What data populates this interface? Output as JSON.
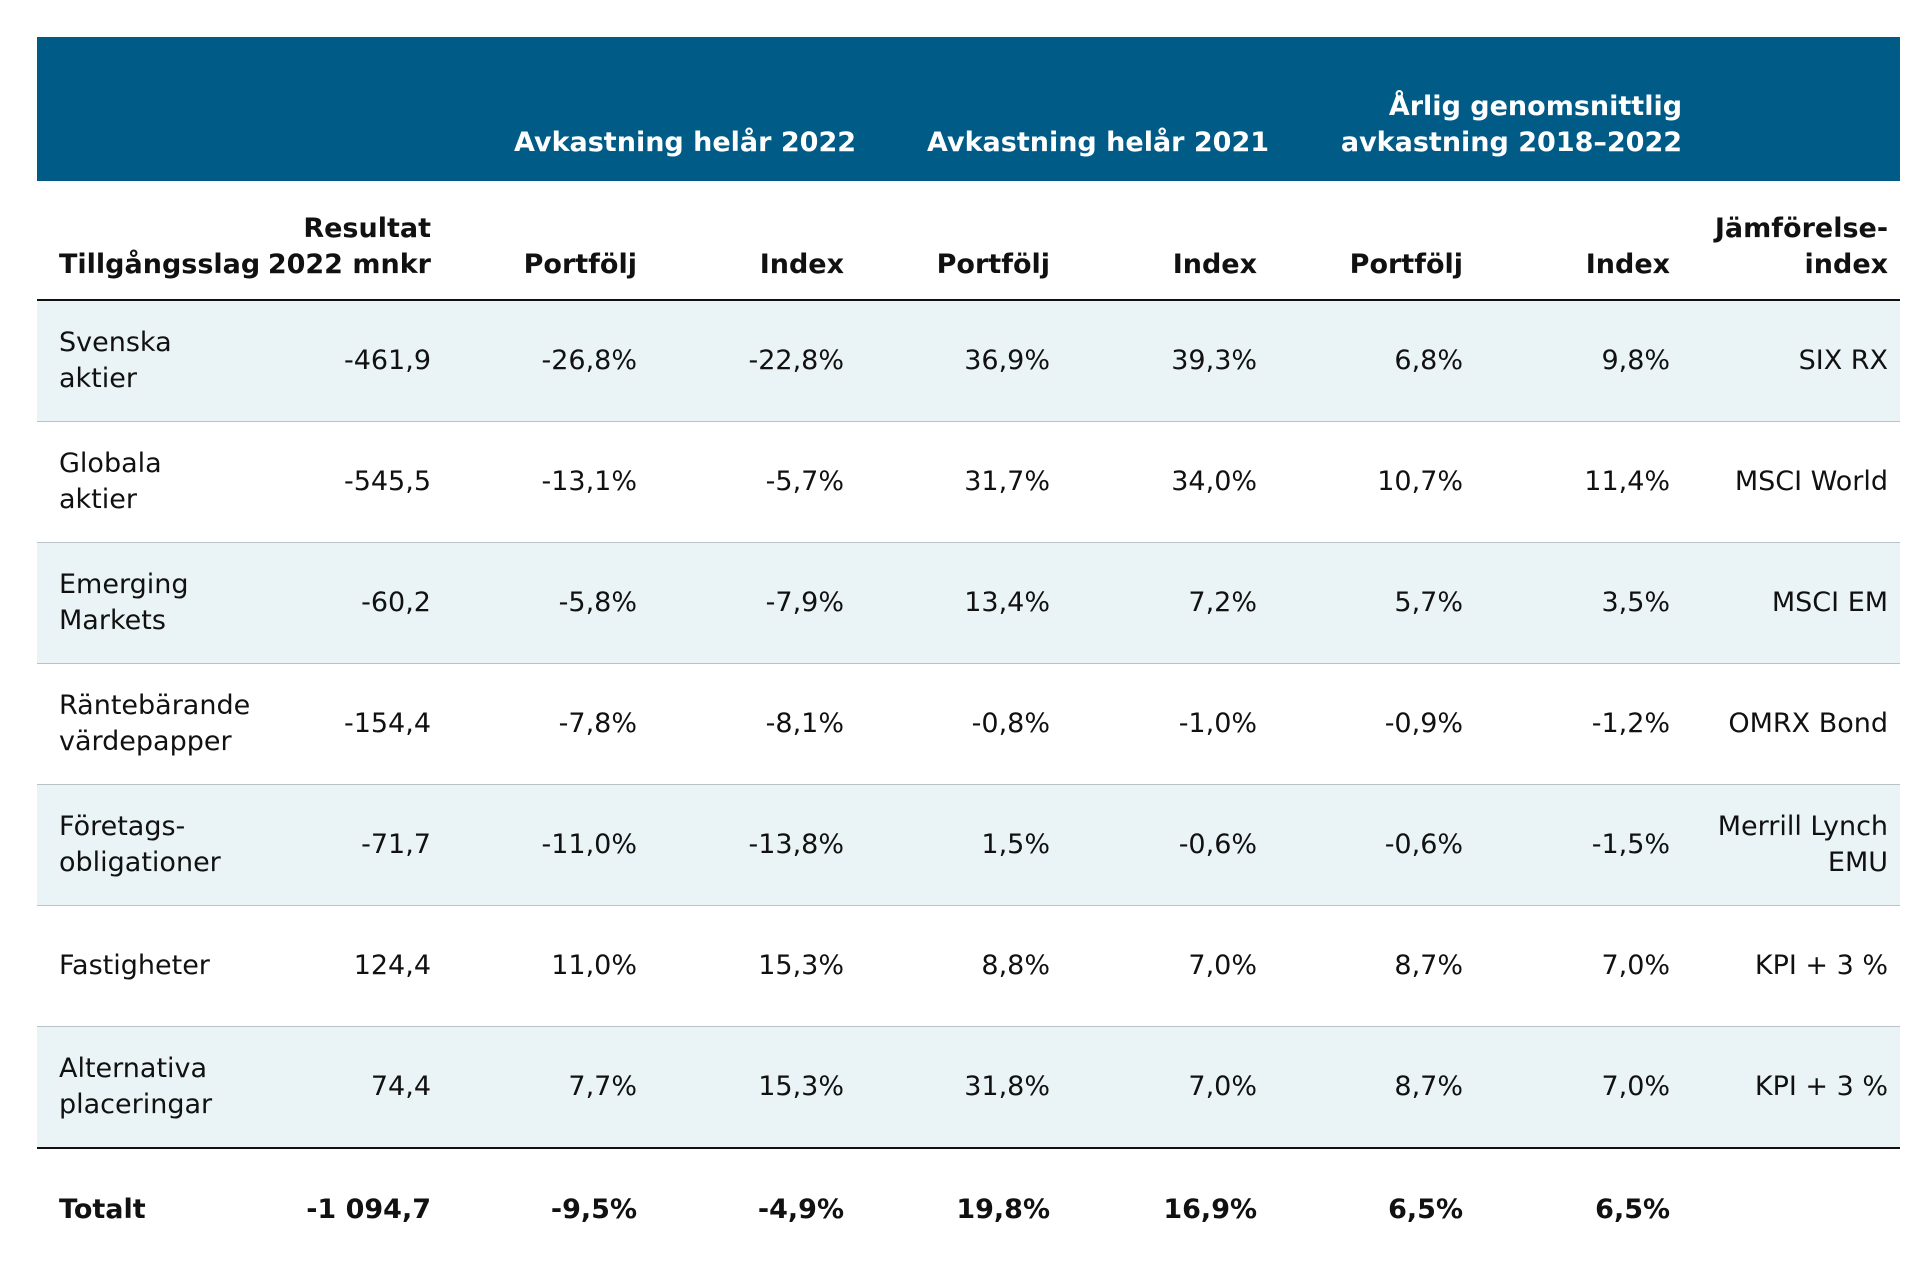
{
  "header": {
    "group_2022": "Avkastning helår 2022",
    "group_2021": "Avkastning helår 2021",
    "group_avg_line1": "Årlig genomsnittlig",
    "group_avg_line2": "avkastning 2018–2022"
  },
  "columns": {
    "asset": "Tillgångsslag",
    "result_line1": "Resultat",
    "result_line2": "2022 mnkr",
    "portfolio": "Portfölj",
    "index": "Index",
    "benchmark_line1": "Jämförelse-",
    "benchmark_line2": "index"
  },
  "rows": [
    {
      "asset_1": "Svenska",
      "asset_2": "aktier",
      "result": "-461,9",
      "p2022": "-26,8%",
      "i2022": "-22,8%",
      "p2021": "36,9%",
      "i2021": "39,3%",
      "pavg": "6,8%",
      "iavg": "9,8%",
      "bench_1": "SIX RX",
      "bench_2": ""
    },
    {
      "asset_1": "Globala aktier",
      "asset_2": "",
      "result": "-545,5",
      "p2022": "-13,1%",
      "i2022": "-5,7%",
      "p2021": "31,7%",
      "i2021": "34,0%",
      "pavg": "10,7%",
      "iavg": "11,4%",
      "bench_1": "MSCI World",
      "bench_2": ""
    },
    {
      "asset_1": "Emerging",
      "asset_2": "Markets",
      "result": "-60,2",
      "p2022": "-5,8%",
      "i2022": "-7,9%",
      "p2021": "13,4%",
      "i2021": "7,2%",
      "pavg": "5,7%",
      "iavg": "3,5%",
      "bench_1": "MSCI EM",
      "bench_2": ""
    },
    {
      "asset_1": "Räntebärande",
      "asset_2": "värdepapper",
      "result": "-154,4",
      "p2022": "-7,8%",
      "i2022": "-8,1%",
      "p2021": "-0,8%",
      "i2021": "-1,0%",
      "pavg": "-0,9%",
      "iavg": "-1,2%",
      "bench_1": "OMRX Bond",
      "bench_2": ""
    },
    {
      "asset_1": "Företags-",
      "asset_2": "obligationer",
      "result": "-71,7",
      "p2022": "-11,0%",
      "i2022": "-13,8%",
      "p2021": "1,5%",
      "i2021": "-0,6%",
      "pavg": "-0,6%",
      "iavg": "-1,5%",
      "bench_1": "Merrill Lynch",
      "bench_2": "EMU"
    },
    {
      "asset_1": "Fastigheter",
      "asset_2": "",
      "result": "124,4",
      "p2022": "11,0%",
      "i2022": "15,3%",
      "p2021": "8,8%",
      "i2021": "7,0%",
      "pavg": "8,7%",
      "iavg": "7,0%",
      "bench_1": "KPI + 3 %",
      "bench_2": ""
    },
    {
      "asset_1": "Alternativa",
      "asset_2": "placeringar",
      "result": "74,4",
      "p2022": "7,7%",
      "i2022": "15,3%",
      "p2021": "31,8%",
      "i2021": "7,0%",
      "pavg": "8,7%",
      "iavg": "7,0%",
      "bench_1": "KPI + 3 %",
      "bench_2": ""
    }
  ],
  "total": {
    "label": "Totalt",
    "result": "-1 094,7",
    "p2022": "-9,5%",
    "i2022": "-4,9%",
    "p2021": "19,8%",
    "i2021": "16,9%",
    "pavg": "6,5%",
    "iavg": "6,5%"
  }
}
